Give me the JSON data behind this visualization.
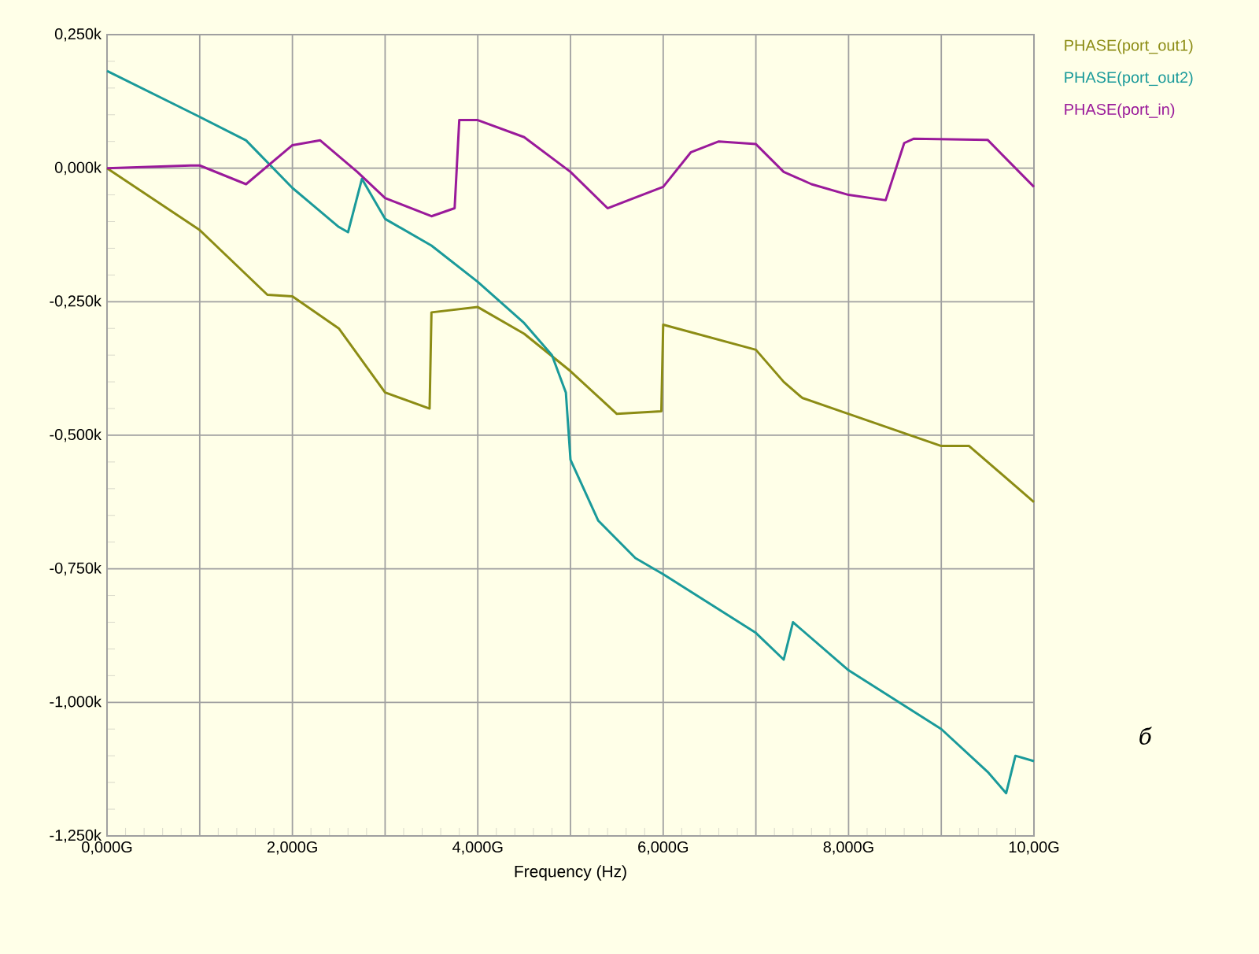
{
  "chart_data": {
    "type": "line",
    "xlabel": "Frequency (Hz)",
    "xlim": [
      0,
      10
    ],
    "ylim": [
      -1.25,
      0.25
    ],
    "xticks": [
      {
        "value": 0,
        "label": "0,000G"
      },
      {
        "value": 1,
        "label": null
      },
      {
        "value": 2,
        "label": "2,000G"
      },
      {
        "value": 3,
        "label": null
      },
      {
        "value": 4,
        "label": "4,000G"
      },
      {
        "value": 5,
        "label": null
      },
      {
        "value": 6,
        "label": "6,000G"
      },
      {
        "value": 7,
        "label": null
      },
      {
        "value": 8,
        "label": "8,000G"
      },
      {
        "value": 9,
        "label": null
      },
      {
        "value": 10,
        "label": "10,00G"
      }
    ],
    "yticks": [
      {
        "value": 0.25,
        "label": "0,250k"
      },
      {
        "value": 0,
        "label": "0,000k"
      },
      {
        "value": -0.25,
        "label": "-0,250k"
      },
      {
        "value": -0.5,
        "label": "-0,500k"
      },
      {
        "value": -0.75,
        "label": "-0,750k"
      },
      {
        "value": -1,
        "label": "-1,000k"
      },
      {
        "value": -1.25,
        "label": "-1,250k"
      }
    ],
    "grid": true,
    "legend": "top right",
    "marker": "none",
    "line_style": "solid",
    "annotations": [
      "б"
    ],
    "series": [
      {
        "name": "PHASE(port_out1)",
        "color": "#8c8c14",
        "x": [
          0,
          1,
          1.73,
          2,
          2.5,
          3,
          3.48,
          3.5,
          4,
          4.5,
          5,
          5.5,
          5.98,
          6,
          7,
          7.3,
          7.5,
          8,
          9,
          9.3,
          10
        ],
        "values": [
          0,
          -0.116,
          -0.237,
          -0.24,
          -0.3,
          -0.42,
          -0.45,
          -0.27,
          -0.26,
          -0.31,
          -0.38,
          -0.46,
          -0.455,
          -0.293,
          -0.34,
          -0.4,
          -0.43,
          -0.46,
          -0.52,
          -0.52,
          -0.625
        ]
      },
      {
        "name": "PHASE(port_out2)",
        "color": "#1a9a9a",
        "x": [
          0,
          1,
          1.5,
          2,
          2.5,
          2.6,
          2.75,
          3,
          3.5,
          4,
          4.5,
          4.8,
          4.95,
          5,
          5.3,
          5.7,
          6,
          7,
          7.3,
          7.4,
          8,
          9,
          9.5,
          9.7,
          9.8,
          10
        ],
        "values": [
          0.182,
          0.096,
          0.052,
          -0.037,
          -0.11,
          -0.12,
          -0.02,
          -0.095,
          -0.145,
          -0.213,
          -0.29,
          -0.35,
          -0.42,
          -0.546,
          -0.66,
          -0.73,
          -0.76,
          -0.87,
          -0.92,
          -0.85,
          -0.94,
          -1.05,
          -1.13,
          -1.17,
          -1.1,
          -1.11
        ]
      },
      {
        "name": "PHASE(port_in)",
        "color": "#9a1a9a",
        "x": [
          0,
          0.9,
          1,
          1.5,
          2,
          2.3,
          2.7,
          3,
          3.5,
          3.75,
          3.8,
          4,
          4.5,
          5,
          5.4,
          6,
          6.3,
          6.6,
          7,
          7.3,
          7.6,
          8,
          8.4,
          8.6,
          8.7,
          9.5,
          10
        ],
        "values": [
          0,
          0.005,
          0.005,
          -0.03,
          0.043,
          0.052,
          -0.007,
          -0.056,
          -0.09,
          -0.075,
          0.09,
          0.09,
          0.058,
          -0.007,
          -0.075,
          -0.035,
          0.03,
          0.05,
          0.045,
          -0.007,
          -0.03,
          -0.05,
          -0.06,
          0.047,
          0.055,
          0.053,
          -0.035
        ]
      }
    ]
  }
}
